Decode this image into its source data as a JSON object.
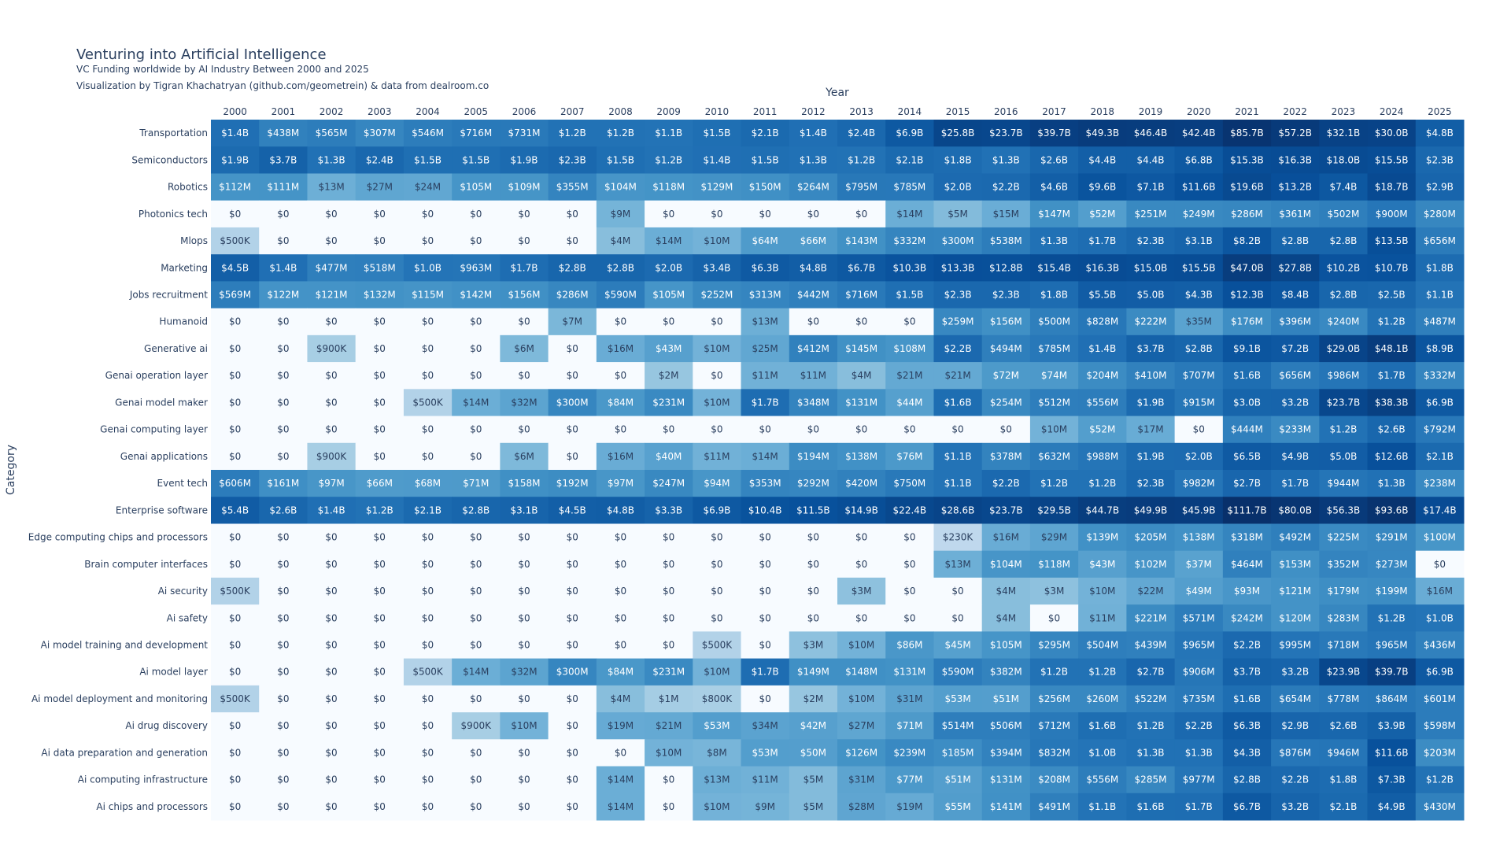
{
  "chart_data": {
    "type": "heatmap",
    "title": "Venturing into Artificial Intelligence",
    "subtitle": "VC Funding worldwide by AI Industry Between 2000 and 2025",
    "credit": "Visualization by Tigran Khachatryan (github.com/geometrein) & data from dealroom.co",
    "xlabel": "Year",
    "ylabel": "Category",
    "colorscale": [
      "#f7fbff",
      "#deebf7",
      "#c6dbef",
      "#9ecae1",
      "#6baed6",
      "#4292c6",
      "#2171b5",
      "#08519c",
      "#08306b"
    ],
    "x": [
      "2000",
      "2001",
      "2002",
      "2003",
      "2004",
      "2005",
      "2006",
      "2007",
      "2008",
      "2009",
      "2010",
      "2011",
      "2012",
      "2013",
      "2014",
      "2015",
      "2016",
      "2017",
      "2018",
      "2019",
      "2020",
      "2021",
      "2022",
      "2023",
      "2024",
      "2025"
    ],
    "rows": [
      {
        "category": "Transportation",
        "labels": [
          "$1.4B",
          "$438M",
          "$565M",
          "$307M",
          "$546M",
          "$716M",
          "$731M",
          "$1.2B",
          "$1.2B",
          "$1.1B",
          "$1.5B",
          "$2.1B",
          "$1.4B",
          "$2.4B",
          "$6.9B",
          "$25.8B",
          "$23.7B",
          "$39.7B",
          "$49.3B",
          "$46.4B",
          "$42.4B",
          "$85.7B",
          "$57.2B",
          "$32.1B",
          "$30.0B",
          "$4.8B"
        ]
      },
      {
        "category": "Semiconductors",
        "labels": [
          "$1.9B",
          "$3.7B",
          "$1.3B",
          "$2.4B",
          "$1.5B",
          "$1.5B",
          "$1.9B",
          "$2.3B",
          "$1.5B",
          "$1.2B",
          "$1.4B",
          "$1.5B",
          "$1.3B",
          "$1.2B",
          "$2.1B",
          "$1.8B",
          "$1.3B",
          "$2.6B",
          "$4.4B",
          "$4.4B",
          "$6.8B",
          "$15.3B",
          "$16.3B",
          "$18.0B",
          "$15.5B",
          "$2.3B"
        ]
      },
      {
        "category": "Robotics",
        "labels": [
          "$112M",
          "$111M",
          "$13M",
          "$27M",
          "$24M",
          "$105M",
          "$109M",
          "$355M",
          "$104M",
          "$118M",
          "$129M",
          "$150M",
          "$264M",
          "$795M",
          "$785M",
          "$2.0B",
          "$2.2B",
          "$4.6B",
          "$9.6B",
          "$7.1B",
          "$11.6B",
          "$19.6B",
          "$13.2B",
          "$7.4B",
          "$18.7B",
          "$2.9B"
        ]
      },
      {
        "category": "Photonics tech",
        "labels": [
          "$0",
          "$0",
          "$0",
          "$0",
          "$0",
          "$0",
          "$0",
          "$0",
          "$9M",
          "$0",
          "$0",
          "$0",
          "$0",
          "$0",
          "$14M",
          "$5M",
          "$15M",
          "$147M",
          "$52M",
          "$251M",
          "$249M",
          "$286M",
          "$361M",
          "$502M",
          "$900M",
          "$280M"
        ]
      },
      {
        "category": "Mlops",
        "labels": [
          "$500K",
          "$0",
          "$0",
          "$0",
          "$0",
          "$0",
          "$0",
          "$0",
          "$4M",
          "$14M",
          "$10M",
          "$64M",
          "$66M",
          "$143M",
          "$332M",
          "$300M",
          "$538M",
          "$1.3B",
          "$1.7B",
          "$2.3B",
          "$3.1B",
          "$8.2B",
          "$2.8B",
          "$2.8B",
          "$13.5B",
          "$656M"
        ]
      },
      {
        "category": "Marketing",
        "labels": [
          "$4.5B",
          "$1.4B",
          "$477M",
          "$518M",
          "$1.0B",
          "$963M",
          "$1.7B",
          "$2.8B",
          "$2.8B",
          "$2.0B",
          "$3.4B",
          "$6.3B",
          "$4.8B",
          "$6.7B",
          "$10.3B",
          "$13.3B",
          "$12.8B",
          "$15.4B",
          "$16.3B",
          "$15.0B",
          "$15.5B",
          "$47.0B",
          "$27.8B",
          "$10.2B",
          "$10.7B",
          "$1.8B"
        ]
      },
      {
        "category": "Jobs recruitment",
        "labels": [
          "$569M",
          "$122M",
          "$121M",
          "$132M",
          "$115M",
          "$142M",
          "$156M",
          "$286M",
          "$590M",
          "$105M",
          "$252M",
          "$313M",
          "$442M",
          "$716M",
          "$1.5B",
          "$2.3B",
          "$2.3B",
          "$1.8B",
          "$5.5B",
          "$5.0B",
          "$4.3B",
          "$12.3B",
          "$8.4B",
          "$2.8B",
          "$2.5B",
          "$1.1B"
        ]
      },
      {
        "category": "Humanoid",
        "labels": [
          "$0",
          "$0",
          "$0",
          "$0",
          "$0",
          "$0",
          "$0",
          "$7M",
          "$0",
          "$0",
          "$0",
          "$13M",
          "$0",
          "$0",
          "$0",
          "$259M",
          "$156M",
          "$500M",
          "$828M",
          "$222M",
          "$35M",
          "$176M",
          "$396M",
          "$240M",
          "$1.2B",
          "$487M"
        ]
      },
      {
        "category": "Generative ai",
        "labels": [
          "$0",
          "$0",
          "$900K",
          "$0",
          "$0",
          "$0",
          "$6M",
          "$0",
          "$16M",
          "$43M",
          "$10M",
          "$25M",
          "$412M",
          "$145M",
          "$108M",
          "$2.2B",
          "$494M",
          "$785M",
          "$1.4B",
          "$3.7B",
          "$2.8B",
          "$9.1B",
          "$7.2B",
          "$29.0B",
          "$48.1B",
          "$8.9B"
        ]
      },
      {
        "category": "Genai operation layer",
        "labels": [
          "$0",
          "$0",
          "$0",
          "$0",
          "$0",
          "$0",
          "$0",
          "$0",
          "$0",
          "$2M",
          "$0",
          "$11M",
          "$11M",
          "$4M",
          "$21M",
          "$21M",
          "$72M",
          "$74M",
          "$204M",
          "$410M",
          "$707M",
          "$1.6B",
          "$656M",
          "$986M",
          "$1.7B",
          "$332M"
        ]
      },
      {
        "category": "Genai model maker",
        "labels": [
          "$0",
          "$0",
          "$0",
          "$0",
          "$500K",
          "$14M",
          "$32M",
          "$300M",
          "$84M",
          "$231M",
          "$10M",
          "$1.7B",
          "$348M",
          "$131M",
          "$44M",
          "$1.6B",
          "$254M",
          "$512M",
          "$556M",
          "$1.9B",
          "$915M",
          "$3.0B",
          "$3.2B",
          "$23.7B",
          "$38.3B",
          "$6.9B"
        ]
      },
      {
        "category": "Genai computing layer",
        "labels": [
          "$0",
          "$0",
          "$0",
          "$0",
          "$0",
          "$0",
          "$0",
          "$0",
          "$0",
          "$0",
          "$0",
          "$0",
          "$0",
          "$0",
          "$0",
          "$0",
          "$0",
          "$10M",
          "$52M",
          "$17M",
          "$0",
          "$444M",
          "$233M",
          "$1.2B",
          "$2.6B",
          "$792M"
        ]
      },
      {
        "category": "Genai applications",
        "labels": [
          "$0",
          "$0",
          "$900K",
          "$0",
          "$0",
          "$0",
          "$6M",
          "$0",
          "$16M",
          "$40M",
          "$11M",
          "$14M",
          "$194M",
          "$138M",
          "$76M",
          "$1.1B",
          "$378M",
          "$632M",
          "$988M",
          "$1.9B",
          "$2.0B",
          "$6.5B",
          "$4.9B",
          "$5.0B",
          "$12.6B",
          "$2.1B"
        ]
      },
      {
        "category": "Event tech",
        "labels": [
          "$606M",
          "$161M",
          "$97M",
          "$66M",
          "$68M",
          "$71M",
          "$158M",
          "$192M",
          "$97M",
          "$247M",
          "$94M",
          "$353M",
          "$292M",
          "$420M",
          "$750M",
          "$1.1B",
          "$2.2B",
          "$1.2B",
          "$1.2B",
          "$2.3B",
          "$982M",
          "$2.7B",
          "$1.7B",
          "$944M",
          "$1.3B",
          "$238M"
        ]
      },
      {
        "category": "Enterprise software",
        "labels": [
          "$5.4B",
          "$2.6B",
          "$1.4B",
          "$1.2B",
          "$2.1B",
          "$2.8B",
          "$3.1B",
          "$4.5B",
          "$4.8B",
          "$3.3B",
          "$6.9B",
          "$10.4B",
          "$11.5B",
          "$14.9B",
          "$22.4B",
          "$28.6B",
          "$23.7B",
          "$29.5B",
          "$44.7B",
          "$49.9B",
          "$45.9B",
          "$111.7B",
          "$80.0B",
          "$56.3B",
          "$93.6B",
          "$17.4B"
        ]
      },
      {
        "category": "Edge computing chips and processors",
        "labels": [
          "$0",
          "$0",
          "$0",
          "$0",
          "$0",
          "$0",
          "$0",
          "$0",
          "$0",
          "$0",
          "$0",
          "$0",
          "$0",
          "$0",
          "$0",
          "$230K",
          "$16M",
          "$29M",
          "$139M",
          "$205M",
          "$138M",
          "$318M",
          "$492M",
          "$225M",
          "$291M",
          "$100M"
        ]
      },
      {
        "category": "Brain computer interfaces",
        "labels": [
          "$0",
          "$0",
          "$0",
          "$0",
          "$0",
          "$0",
          "$0",
          "$0",
          "$0",
          "$0",
          "$0",
          "$0",
          "$0",
          "$0",
          "$0",
          "$13M",
          "$104M",
          "$118M",
          "$43M",
          "$102M",
          "$37M",
          "$464M",
          "$153M",
          "$352M",
          "$273M",
          "$0"
        ]
      },
      {
        "category": "Ai security",
        "labels": [
          "$500K",
          "$0",
          "$0",
          "$0",
          "$0",
          "$0",
          "$0",
          "$0",
          "$0",
          "$0",
          "$0",
          "$0",
          "$0",
          "$3M",
          "$0",
          "$0",
          "$4M",
          "$3M",
          "$10M",
          "$22M",
          "$49M",
          "$93M",
          "$121M",
          "$179M",
          "$199M",
          "$16M"
        ]
      },
      {
        "category": "Ai safety",
        "labels": [
          "$0",
          "$0",
          "$0",
          "$0",
          "$0",
          "$0",
          "$0",
          "$0",
          "$0",
          "$0",
          "$0",
          "$0",
          "$0",
          "$0",
          "$0",
          "$0",
          "$4M",
          "$0",
          "$11M",
          "$221M",
          "$571M",
          "$242M",
          "$120M",
          "$283M",
          "$1.2B",
          "$1.0B"
        ]
      },
      {
        "category": "Ai model training and development",
        "labels": [
          "$0",
          "$0",
          "$0",
          "$0",
          "$0",
          "$0",
          "$0",
          "$0",
          "$0",
          "$0",
          "$500K",
          "$0",
          "$3M",
          "$10M",
          "$86M",
          "$45M",
          "$105M",
          "$295M",
          "$504M",
          "$439M",
          "$965M",
          "$2.2B",
          "$995M",
          "$718M",
          "$965M",
          "$436M"
        ]
      },
      {
        "category": "Ai model layer",
        "labels": [
          "$0",
          "$0",
          "$0",
          "$0",
          "$500K",
          "$14M",
          "$32M",
          "$300M",
          "$84M",
          "$231M",
          "$10M",
          "$1.7B",
          "$149M",
          "$148M",
          "$131M",
          "$590M",
          "$382M",
          "$1.2B",
          "$1.2B",
          "$2.7B",
          "$906M",
          "$3.7B",
          "$3.2B",
          "$23.9B",
          "$39.7B",
          "$6.9B"
        ]
      },
      {
        "category": "Ai model deployment and monitoring",
        "labels": [
          "$500K",
          "$0",
          "$0",
          "$0",
          "$0",
          "$0",
          "$0",
          "$0",
          "$4M",
          "$1M",
          "$800K",
          "$0",
          "$2M",
          "$10M",
          "$31M",
          "$53M",
          "$51M",
          "$256M",
          "$260M",
          "$522M",
          "$735M",
          "$1.6B",
          "$654M",
          "$778M",
          "$864M",
          "$601M"
        ]
      },
      {
        "category": "Ai drug discovery",
        "labels": [
          "$0",
          "$0",
          "$0",
          "$0",
          "$0",
          "$900K",
          "$10M",
          "$0",
          "$19M",
          "$21M",
          "$53M",
          "$34M",
          "$42M",
          "$27M",
          "$71M",
          "$514M",
          "$506M",
          "$712M",
          "$1.6B",
          "$1.2B",
          "$2.2B",
          "$6.3B",
          "$2.9B",
          "$2.6B",
          "$3.9B",
          "$598M"
        ]
      },
      {
        "category": "Ai data preparation and generation",
        "labels": [
          "$0",
          "$0",
          "$0",
          "$0",
          "$0",
          "$0",
          "$0",
          "$0",
          "$0",
          "$10M",
          "$8M",
          "$53M",
          "$50M",
          "$126M",
          "$239M",
          "$185M",
          "$394M",
          "$832M",
          "$1.0B",
          "$1.3B",
          "$1.3B",
          "$4.3B",
          "$876M",
          "$946M",
          "$11.6B",
          "$203M"
        ]
      },
      {
        "category": "Ai computing infrastructure",
        "labels": [
          "$0",
          "$0",
          "$0",
          "$0",
          "$0",
          "$0",
          "$0",
          "$0",
          "$14M",
          "$0",
          "$13M",
          "$11M",
          "$5M",
          "$31M",
          "$77M",
          "$51M",
          "$131M",
          "$208M",
          "$556M",
          "$285M",
          "$977M",
          "$2.8B",
          "$2.2B",
          "$1.8B",
          "$7.3B",
          "$1.2B"
        ]
      },
      {
        "category": "Ai chips and processors",
        "labels": [
          "$0",
          "$0",
          "$0",
          "$0",
          "$0",
          "$0",
          "$0",
          "$0",
          "$14M",
          "$0",
          "$10M",
          "$9M",
          "$5M",
          "$28M",
          "$19M",
          "$55M",
          "$141M",
          "$491M",
          "$1.1B",
          "$1.6B",
          "$1.7B",
          "$6.7B",
          "$3.2B",
          "$2.1B",
          "$4.9B",
          "$430M"
        ]
      }
    ]
  }
}
